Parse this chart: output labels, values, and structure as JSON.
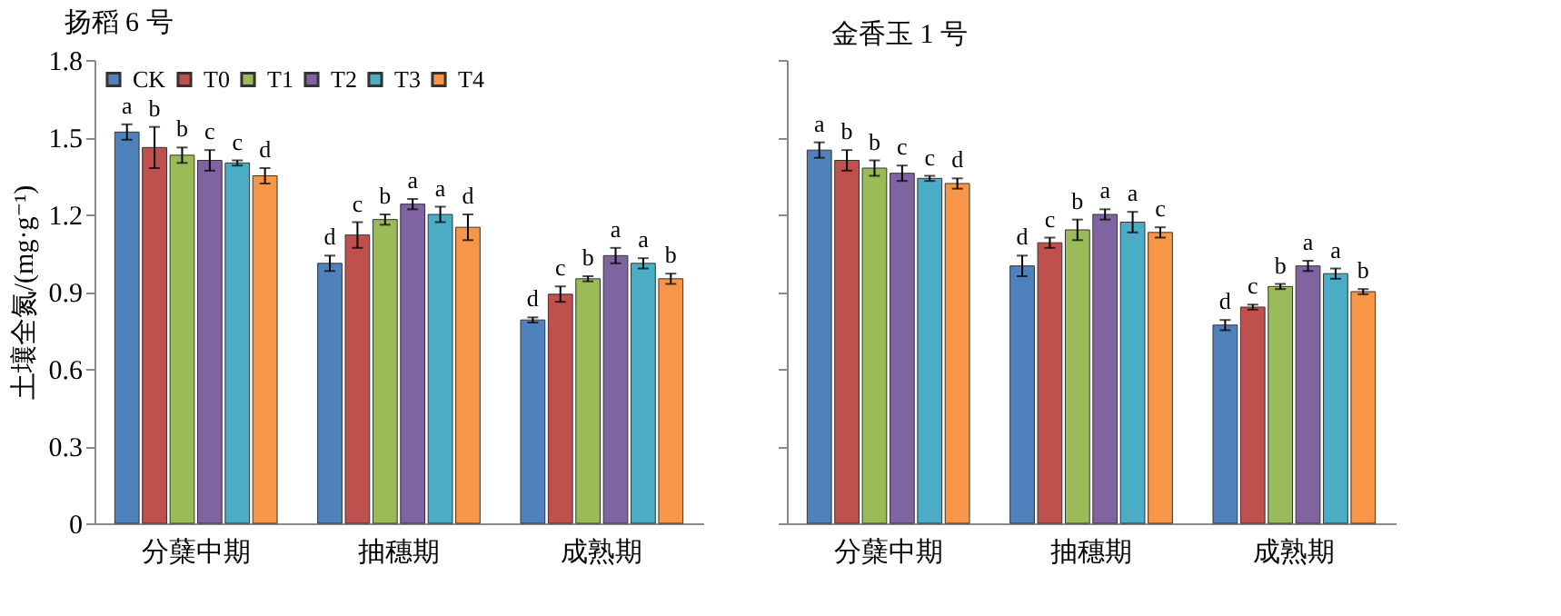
{
  "chart_data": [
    {
      "type": "bar",
      "title": "扬稻 6 号",
      "ylabel": "土壤全氮/(mg·g⁻¹)",
      "categories": [
        "分蘖中期",
        "抽穗期",
        "成熟期"
      ],
      "ylim": [
        0,
        1.8
      ],
      "yticks": [
        0,
        0.3,
        0.6,
        0.9,
        1.2,
        1.5,
        1.8
      ],
      "grid": false,
      "legend": "top left",
      "series": [
        {
          "name": "CK",
          "color": "#4f81bd",
          "values": [
            1.52,
            1.01,
            0.79
          ],
          "errors": [
            0.03,
            0.03,
            0.01
          ],
          "value_labels": [
            "a",
            "d",
            "d"
          ]
        },
        {
          "name": "T0",
          "color": "#c0504d",
          "values": [
            1.46,
            1.12,
            0.89
          ],
          "errors": [
            0.08,
            0.05,
            0.03
          ],
          "value_labels": [
            "b",
            "c",
            "c"
          ]
        },
        {
          "name": "T1",
          "color": "#9bbb59",
          "values": [
            1.43,
            1.18,
            0.95
          ],
          "errors": [
            0.03,
            0.02,
            0.01
          ],
          "value_labels": [
            "b",
            "b",
            "b"
          ]
        },
        {
          "name": "T2",
          "color": "#8064a2",
          "values": [
            1.41,
            1.24,
            1.04
          ],
          "errors": [
            0.04,
            0.02,
            0.03
          ],
          "value_labels": [
            "c",
            "a",
            "a"
          ]
        },
        {
          "name": "T3",
          "color": "#4bacc6",
          "values": [
            1.4,
            1.2,
            1.01
          ],
          "errors": [
            0.01,
            0.03,
            0.02
          ],
          "value_labels": [
            "c",
            "a",
            "a"
          ]
        },
        {
          "name": "T4",
          "color": "#f79646",
          "values": [
            1.35,
            1.15,
            0.95
          ],
          "errors": [
            0.03,
            0.05,
            0.02
          ],
          "value_labels": [
            "d",
            "d",
            "b"
          ]
        }
      ]
    },
    {
      "type": "bar",
      "title": "金香玉 1 号",
      "categories": [
        "分蘖中期",
        "抽穗期",
        "成熟期"
      ],
      "ylim": [
        0,
        1.8
      ],
      "yticks": [
        0,
        0.3,
        0.6,
        0.9,
        1.2,
        1.5,
        1.8
      ],
      "tick_labels": "x",
      "grid": false,
      "legend": "top left",
      "series": [
        {
          "name": "CK",
          "color": "#4f81bd",
          "values": [
            1.45,
            1.0,
            0.77
          ],
          "errors": [
            0.03,
            0.04,
            0.02
          ],
          "value_labels": [
            "a",
            "d",
            "d"
          ]
        },
        {
          "name": "T0",
          "color": "#c0504d",
          "values": [
            1.41,
            1.09,
            0.84
          ],
          "errors": [
            0.04,
            0.02,
            0.01
          ],
          "value_labels": [
            "b",
            "c",
            "c"
          ]
        },
        {
          "name": "T1",
          "color": "#9bbb59",
          "values": [
            1.38,
            1.14,
            0.92
          ],
          "errors": [
            0.03,
            0.04,
            0.01
          ],
          "value_labels": [
            "b",
            "b",
            "b"
          ]
        },
        {
          "name": "T2",
          "color": "#8064a2",
          "values": [
            1.36,
            1.2,
            1.0
          ],
          "errors": [
            0.03,
            0.02,
            0.02
          ],
          "value_labels": [
            "c",
            "a",
            "a"
          ]
        },
        {
          "name": "T3",
          "color": "#4bacc6",
          "values": [
            1.34,
            1.17,
            0.97
          ],
          "errors": [
            0.01,
            0.04,
            0.02
          ],
          "value_labels": [
            "c",
            "a",
            "a"
          ]
        },
        {
          "name": "T4",
          "color": "#f79646",
          "values": [
            1.32,
            1.13,
            0.9
          ],
          "errors": [
            0.02,
            0.02,
            0.01
          ],
          "value_labels": [
            "d",
            "c",
            "b"
          ]
        }
      ]
    }
  ]
}
